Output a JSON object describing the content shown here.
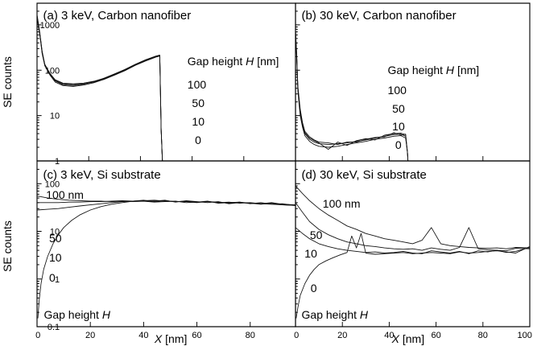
{
  "figure": {
    "y_label": "SE counts",
    "x_label_italic": "X",
    "x_label_unit": " [nm]"
  },
  "chart_data": [
    {
      "type": "line",
      "title": "(a) 3 keV, Carbon nanofiber",
      "ylabel": "SE counts",
      "xlabel": "",
      "xlim": [
        0,
        100
      ],
      "ylim": [
        1,
        3000
      ],
      "yscale": "log",
      "yticks": [
        1,
        10,
        100,
        1000
      ],
      "ytick_labels": [
        "1",
        "10",
        "100",
        "1000"
      ],
      "xticks": [
        0,
        20,
        40,
        60,
        80,
        100
      ],
      "xtick_labels": [],
      "legend_title_text": "Gap height ",
      "legend_title_italic": "H",
      "legend_title_unit": " [nm]",
      "legend_entries": [
        "100",
        "50",
        "10",
        "0"
      ],
      "series": [
        {
          "x": [
            0,
            1,
            2,
            3,
            5,
            7,
            10,
            14,
            18,
            22,
            26,
            30,
            34,
            38,
            42,
            46,
            47.5,
            48,
            48.5
          ],
          "y": [
            1600,
            700,
            250,
            130,
            80,
            60,
            50,
            48,
            50,
            55,
            65,
            80,
            100,
            130,
            165,
            200,
            210,
            5,
            1
          ]
        },
        {
          "x": [
            0,
            1,
            2,
            3,
            5,
            7,
            10,
            14,
            18,
            22,
            26,
            30,
            34,
            38,
            42,
            46,
            47.5,
            48,
            48.5
          ],
          "y": [
            1400,
            650,
            230,
            125,
            78,
            55,
            46,
            44,
            47,
            53,
            63,
            78,
            98,
            128,
            160,
            195,
            205,
            5,
            1
          ]
        },
        {
          "x": [
            0,
            1,
            2,
            3,
            5,
            7,
            10,
            14,
            18,
            22,
            26,
            30,
            34,
            38,
            42,
            46,
            47.5,
            48,
            48.5
          ],
          "y": [
            1500,
            680,
            240,
            128,
            82,
            58,
            48,
            46,
            49,
            56,
            66,
            82,
            103,
            133,
            168,
            203,
            212,
            5,
            1
          ]
        },
        {
          "x": [
            0,
            1,
            2,
            3,
            5,
            7,
            10,
            14,
            18,
            22,
            26,
            30,
            34,
            38,
            42,
            46,
            47.5,
            48,
            48.5
          ],
          "y": [
            1700,
            720,
            260,
            135,
            85,
            62,
            52,
            50,
            52,
            57,
            67,
            83,
            104,
            135,
            170,
            205,
            215,
            5,
            1
          ]
        }
      ]
    },
    {
      "type": "line",
      "title": "(b) 30 keV, Carbon nanofiber",
      "ylabel": "",
      "xlabel": "",
      "xlim": [
        0,
        100
      ],
      "ylim": [
        1,
        3000
      ],
      "yscale": "log",
      "yticks": [
        1,
        10,
        100,
        1000
      ],
      "ytick_labels": [],
      "xticks": [
        0,
        20,
        40,
        60,
        80,
        100
      ],
      "xtick_labels": [],
      "legend_title_text": "Gap height ",
      "legend_title_italic": "H",
      "legend_title_unit": " [nm]",
      "legend_entries": [
        "100",
        "50",
        "10",
        "0"
      ],
      "series": [
        {
          "x": [
            0,
            0.5,
            1,
            2,
            3,
            4,
            6,
            8,
            10,
            14,
            18,
            22,
            26,
            30,
            34,
            38,
            42,
            45,
            47,
            47.8,
            48
          ],
          "y": [
            700,
            200,
            40,
            12,
            6,
            4,
            3,
            2.6,
            2.4,
            2.3,
            2.4,
            2.5,
            2.7,
            2.9,
            3.2,
            3.5,
            3.8,
            3.9,
            3.5,
            1.5,
            1
          ]
        },
        {
          "x": [
            0,
            0.5,
            1,
            2,
            3,
            4,
            6,
            8,
            10,
            14,
            18,
            22,
            26,
            30,
            34,
            38,
            42,
            45,
            47,
            47.8,
            48
          ],
          "y": [
            650,
            180,
            35,
            10,
            5.5,
            3.6,
            2.7,
            2.3,
            2.1,
            2.0,
            2.1,
            2.3,
            2.5,
            2.7,
            3.0,
            3.2,
            3.5,
            3.6,
            3.2,
            1.5,
            1
          ]
        },
        {
          "x": [
            0,
            0.5,
            1,
            2,
            3,
            4,
            6,
            8,
            10,
            14,
            18,
            22,
            26,
            30,
            34,
            38,
            42,
            45,
            47,
            47.8,
            48
          ],
          "y": [
            750,
            210,
            42,
            13,
            6.5,
            4.2,
            3.2,
            2.8,
            2.5,
            1.8,
            2.6,
            2.2,
            2.8,
            3.1,
            2.9,
            3.7,
            4.0,
            4.1,
            3.8,
            1.5,
            1
          ]
        },
        {
          "x": [
            0,
            0.5,
            1,
            2,
            3,
            4,
            6,
            8,
            10,
            14,
            18,
            22,
            26,
            30,
            34,
            38,
            42,
            45,
            47,
            47.8,
            48
          ],
          "y": [
            800,
            220,
            45,
            14,
            7,
            4.5,
            3.4,
            2.9,
            2.6,
            2.5,
            2.3,
            2.6,
            2.6,
            3.0,
            3.3,
            3.4,
            4.2,
            3.7,
            3.9,
            1.5,
            1
          ]
        }
      ]
    },
    {
      "type": "line",
      "title": "(c) 3 keV, Si substrate",
      "ylabel": "SE counts",
      "xlabel": "X [nm]",
      "xlim": [
        0,
        97
      ],
      "ylim": [
        0.1,
        300
      ],
      "yscale": "log",
      "yticks": [
        0.1,
        1,
        10,
        100
      ],
      "ytick_labels": [
        "0.1",
        "1",
        "10",
        "100"
      ],
      "xticks": [
        0,
        20,
        40,
        60,
        80
      ],
      "xtick_labels": [
        "0",
        "20",
        "40",
        "60",
        "80"
      ],
      "annotations": [
        "100 nm",
        "50",
        "10",
        "0"
      ],
      "annotation_title_text": "Gap height ",
      "annotation_title_italic": "H",
      "series": [
        {
          "x": [
            0,
            4,
            8,
            12,
            16,
            20,
            24,
            28,
            32,
            36,
            40,
            44,
            48,
            52,
            56,
            60,
            64,
            68,
            72,
            76,
            80,
            84,
            88,
            92,
            97
          ],
          "y": [
            55,
            50,
            47,
            45,
            44,
            43,
            43,
            42,
            43,
            42,
            43,
            41,
            42,
            43,
            40,
            41,
            43,
            39,
            40,
            41,
            39,
            38,
            40,
            37,
            36
          ]
        },
        {
          "x": [
            0,
            4,
            8,
            12,
            16,
            20,
            24,
            28,
            32,
            36,
            40,
            44,
            48,
            52,
            56,
            60,
            64,
            68,
            72,
            76,
            80,
            84,
            88,
            92,
            97
          ],
          "y": [
            40,
            40,
            40,
            41,
            41,
            42,
            42,
            43,
            44,
            43,
            45,
            42,
            44,
            42,
            42,
            40,
            42,
            41,
            39,
            41,
            38,
            40,
            37,
            38,
            35
          ]
        },
        {
          "x": [
            0,
            4,
            8,
            12,
            16,
            20,
            24,
            28,
            32,
            36,
            40,
            44,
            48,
            52,
            56,
            60,
            64,
            68,
            72,
            76,
            80,
            84,
            88,
            92,
            97
          ],
          "y": [
            28,
            29,
            30,
            32,
            34,
            36,
            38,
            40,
            42,
            43,
            44,
            43,
            45,
            41,
            44,
            42,
            40,
            42,
            38,
            40,
            39,
            37,
            39,
            36,
            35
          ]
        },
        {
          "x": [
            0.3,
            0.8,
            1.5,
            2.5,
            4,
            6,
            8,
            10,
            13,
            16,
            20,
            24,
            28,
            32,
            36,
            40,
            44,
            48,
            52,
            56,
            60,
            64,
            68,
            72,
            76,
            80,
            84,
            88,
            92,
            97
          ],
          "y": [
            0.15,
            0.35,
            0.8,
            1.6,
            3,
            5.5,
            8.5,
            12,
            17,
            22,
            28,
            33,
            37,
            40,
            43,
            44,
            45,
            43,
            42,
            43,
            41,
            42,
            40,
            41,
            39,
            40,
            38,
            37,
            36,
            35
          ]
        }
      ]
    },
    {
      "type": "line",
      "title": "(d) 30 keV, Si substrate",
      "ylabel": "",
      "xlabel": "X [nm]",
      "xlim": [
        0,
        100
      ],
      "ylim": [
        0.1,
        300
      ],
      "yscale": "log",
      "yticks": [
        0.1,
        1,
        10,
        100
      ],
      "ytick_labels": [],
      "xticks": [
        0,
        20,
        40,
        60,
        80,
        100
      ],
      "xtick_labels": [
        "0",
        "20",
        "40",
        "60",
        "80",
        "100"
      ],
      "annotations": [
        "100 nm",
        "50",
        "10",
        "0"
      ],
      "annotation_title_text": "Gap height ",
      "annotation_title_italic": "H",
      "series": [
        {
          "x": [
            0,
            3,
            6,
            10,
            14,
            18,
            22,
            26,
            30,
            34,
            38,
            42,
            46,
            50,
            54,
            58,
            62,
            66,
            70,
            74,
            78,
            82,
            86,
            90,
            94,
            100
          ],
          "y": [
            90,
            62,
            44,
            30,
            22,
            17,
            13,
            11,
            9,
            8,
            7,
            6.5,
            6,
            5.5,
            6.5,
            12,
            5.5,
            5,
            4.8,
            4.6,
            4.5,
            4.4,
            4.5,
            4.3,
            4.6,
            4.5
          ]
        },
        {
          "x": [
            0,
            3,
            6,
            10,
            14,
            18,
            22,
            26,
            30,
            34,
            38,
            42,
            46,
            50,
            54,
            58,
            62,
            66,
            70,
            74,
            78,
            82,
            86,
            90,
            94,
            100
          ],
          "y": [
            40,
            25,
            16,
            11,
            8.5,
            7,
            6,
            5.5,
            5,
            4.8,
            4.5,
            4.3,
            4.2,
            4.3,
            4.0,
            4.5,
            4.2,
            4.0,
            4.6,
            12,
            4.3,
            4.1,
            4.0,
            3.9,
            4.4,
            4.3
          ]
        },
        {
          "x": [
            0,
            3,
            6,
            10,
            14,
            18,
            22,
            26,
            30,
            34,
            38,
            42,
            46,
            50,
            54,
            58,
            62,
            66,
            70,
            74,
            78,
            82,
            86,
            90,
            94,
            100
          ],
          "y": [
            12,
            9,
            7,
            5.5,
            4.8,
            4.3,
            4,
            3.8,
            3.6,
            3.7,
            3.5,
            3.6,
            3.8,
            3.5,
            3.4,
            3.9,
            3.7,
            3.5,
            3.8,
            3.4,
            3.9,
            3.7,
            4.0,
            3.6,
            3.8,
            4.6
          ]
        },
        {
          "x": [
            0.3,
            1,
            2,
            4,
            6,
            8,
            10,
            13,
            16,
            19,
            22,
            24,
            26,
            28,
            30,
            34,
            38,
            42,
            46,
            50,
            54,
            58,
            62,
            66,
            70,
            74,
            78,
            82,
            86,
            90,
            94,
            100
          ],
          "y": [
            0.15,
            0.25,
            0.45,
            0.8,
            1.2,
            1.6,
            2,
            2.4,
            2.8,
            3.2,
            3.6,
            8,
            4.5,
            9,
            3.5,
            3.3,
            3.4,
            3.5,
            3.6,
            3.4,
            3.5,
            3.6,
            3.5,
            3.4,
            3.7,
            3.5,
            3.6,
            3.8,
            3.9,
            3.7,
            3.5,
            4.8
          ]
        }
      ]
    }
  ]
}
